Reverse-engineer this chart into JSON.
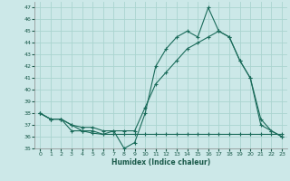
{
  "xlabel": "Humidex (Indice chaleur)",
  "background_color": "#cce8e8",
  "grid_color": "#aad4d0",
  "line_color": "#1a6b5a",
  "xlim": [
    -0.5,
    23.5
  ],
  "ylim": [
    35,
    47.5
  ],
  "yticks": [
    35,
    36,
    37,
    38,
    39,
    40,
    41,
    42,
    43,
    44,
    45,
    46,
    47
  ],
  "xticks": [
    0,
    1,
    2,
    3,
    4,
    5,
    6,
    7,
    8,
    9,
    10,
    11,
    12,
    13,
    14,
    15,
    16,
    17,
    18,
    19,
    20,
    21,
    22,
    23
  ],
  "line1_x": [
    0,
    1,
    2,
    3,
    4,
    5,
    6,
    7,
    8,
    9,
    10,
    11,
    12,
    13,
    14,
    15,
    16,
    17,
    18,
    19,
    20,
    21,
    22,
    23
  ],
  "line1_y": [
    38.0,
    37.5,
    37.5,
    37.0,
    36.5,
    36.5,
    36.2,
    36.5,
    35.0,
    35.5,
    38.0,
    42.0,
    43.5,
    44.5,
    45.0,
    44.5,
    47.0,
    45.0,
    44.5,
    42.5,
    41.0,
    37.5,
    36.5,
    36.0
  ],
  "line2_x": [
    0,
    1,
    2,
    3,
    4,
    5,
    6,
    7,
    8,
    9,
    10,
    11,
    12,
    13,
    14,
    15,
    16,
    17,
    18,
    19,
    20,
    21,
    22,
    23
  ],
  "line2_y": [
    38.0,
    37.5,
    37.5,
    36.5,
    36.5,
    36.3,
    36.2,
    36.2,
    36.2,
    36.2,
    36.2,
    36.2,
    36.2,
    36.2,
    36.2,
    36.2,
    36.2,
    36.2,
    36.2,
    36.2,
    36.2,
    36.2,
    36.2,
    36.2
  ],
  "line3_x": [
    0,
    1,
    2,
    3,
    4,
    5,
    6,
    7,
    8,
    9,
    10,
    11,
    12,
    13,
    14,
    15,
    16,
    17,
    18,
    19,
    20,
    21,
    22,
    23
  ],
  "line3_y": [
    38.0,
    37.5,
    37.5,
    37.0,
    36.8,
    36.8,
    36.5,
    36.5,
    36.5,
    36.5,
    38.5,
    40.5,
    41.5,
    42.5,
    43.5,
    44.0,
    44.5,
    45.0,
    44.5,
    42.5,
    41.0,
    37.0,
    36.5,
    36.0
  ]
}
